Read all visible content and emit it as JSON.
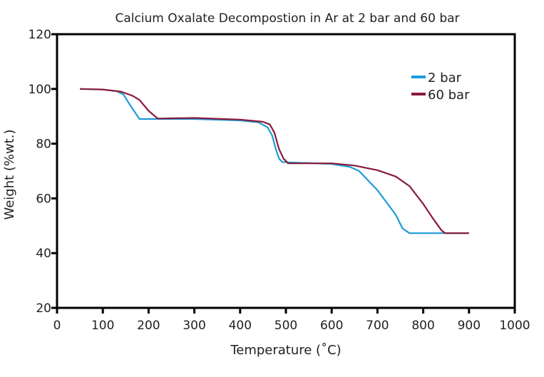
{
  "chart_data": {
    "type": "line",
    "title": "Calcium Oxalate Decompostion in Ar at 2 bar and 60 bar",
    "xlabel": "Temperature (˚C)",
    "ylabel": "Weight (%wt.)",
    "xlim": [
      0,
      1000
    ],
    "ylim": [
      20,
      120
    ],
    "xticks": [
      0,
      100,
      200,
      300,
      400,
      500,
      600,
      700,
      800,
      900,
      1000
    ],
    "yticks": [
      20,
      40,
      60,
      80,
      100,
      120
    ],
    "grid": false,
    "legend_position": "top-right",
    "series": [
      {
        "name": "2 bar",
        "color": "#1e9bd7",
        "x": [
          50,
          100,
          130,
          145,
          160,
          180,
          220,
          300,
          400,
          440,
          460,
          470,
          478,
          485,
          492,
          500,
          600,
          640,
          660,
          700,
          740,
          755,
          770,
          900
        ],
        "y": [
          100,
          99.8,
          99.2,
          98,
          94,
          89,
          89,
          89,
          88.5,
          87.8,
          86,
          83,
          78,
          74.5,
          73.3,
          73.2,
          72.6,
          71.5,
          70,
          63,
          54,
          49,
          47.3,
          47.3
        ]
      },
      {
        "name": "60 bar",
        "color": "#8b1a3a",
        "x": [
          50,
          100,
          140,
          165,
          180,
          200,
          220,
          300,
          400,
          450,
          465,
          475,
          485,
          495,
          505,
          600,
          650,
          700,
          740,
          770,
          800,
          820,
          840,
          848,
          900
        ],
        "y": [
          100,
          99.8,
          99,
          97.5,
          96,
          92,
          89.2,
          89.4,
          88.8,
          88,
          87,
          84,
          78,
          74.5,
          72.8,
          72.8,
          72,
          70.3,
          68,
          64.5,
          58,
          53,
          48.3,
          47.3,
          47.3
        ]
      }
    ]
  }
}
